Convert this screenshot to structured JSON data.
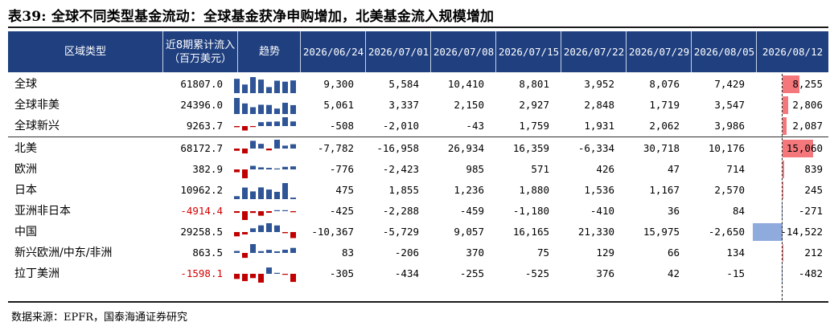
{
  "title": "表39: 全球不同类型基金流动：全球基金获净申购增加，北美基金流入规模增加",
  "header": {
    "region": "区域类型",
    "cum_line1": "近8期累计流入",
    "cum_line2": "（百万美元）",
    "trend": "趋势",
    "dates": [
      "2026/06/24",
      "2026/07/01",
      "2026/07/08",
      "2026/07/15",
      "2026/07/22",
      "2026/07/29",
      "2026/08/05",
      "2026/08/12"
    ]
  },
  "rows": [
    {
      "name": "全球",
      "cum": "61807.0",
      "cum_negative": false,
      "values": [
        9300,
        5584,
        10410,
        8801,
        3952,
        8076,
        7429,
        8255
      ],
      "labels": [
        "9,300",
        "5,584",
        "10,410",
        "8,801",
        "3,952",
        "8,076",
        "7,429",
        "8,255"
      ]
    },
    {
      "name": "全球非美",
      "cum": "24396.0",
      "cum_negative": false,
      "values": [
        5061,
        3337,
        2150,
        2927,
        2848,
        1719,
        3547,
        2806
      ],
      "labels": [
        "5,061",
        "3,337",
        "2,150",
        "2,927",
        "2,848",
        "1,719",
        "3,547",
        "2,806"
      ]
    },
    {
      "name": "全球新兴",
      "cum": "9263.7",
      "cum_negative": false,
      "values": [
        -508,
        -2010,
        -43,
        1759,
        1931,
        2062,
        3986,
        2087
      ],
      "labels": [
        "-508",
        "-2,010",
        "-43",
        "1,759",
        "1,931",
        "2,062",
        "3,986",
        "2,087"
      ]
    },
    {
      "name": "北美",
      "cum": "68172.7",
      "cum_negative": false,
      "values": [
        -7782,
        -16958,
        26934,
        16359,
        -6334,
        30718,
        10176,
        15060
      ],
      "labels": [
        "-7,782",
        "-16,958",
        "26,934",
        "16,359",
        "-6,334",
        "30,718",
        "10,176",
        "15,060"
      ]
    },
    {
      "name": "欧洲",
      "cum": "382.9",
      "cum_negative": false,
      "values": [
        -776,
        -2423,
        985,
        571,
        426,
        47,
        714,
        839
      ],
      "labels": [
        "-776",
        "-2,423",
        "985",
        "571",
        "426",
        "47",
        "714",
        "839"
      ]
    },
    {
      "name": "日本",
      "cum": "10962.2",
      "cum_negative": false,
      "values": [
        475,
        1855,
        1236,
        1880,
        1536,
        1167,
        2570,
        245
      ],
      "labels": [
        "475",
        "1,855",
        "1,236",
        "1,880",
        "1,536",
        "1,167",
        "2,570",
        "245"
      ]
    },
    {
      "name": "亚洲非日本",
      "cum": "-4914.4",
      "cum_negative": true,
      "values": [
        -425,
        -2288,
        -459,
        -1180,
        -410,
        36,
        84,
        -271
      ],
      "labels": [
        "-425",
        "-2,288",
        "-459",
        "-1,180",
        "-410",
        "36",
        "84",
        "-271"
      ]
    },
    {
      "name": "中国",
      "cum": "29258.5",
      "cum_negative": false,
      "values": [
        -10367,
        -5729,
        9057,
        16165,
        21330,
        15975,
        -2650,
        -14522
      ],
      "labels": [
        "-10,367",
        "-5,729",
        "9,057",
        "16,165",
        "21,330",
        "15,975",
        "-2,650",
        "-14,522"
      ]
    },
    {
      "name": "新兴欧洲/中东/非洲",
      "cum": "863.5",
      "cum_negative": false,
      "values": [
        83,
        -206,
        370,
        75,
        129,
        66,
        134,
        212
      ],
      "labels": [
        "83",
        "-206",
        "370",
        "75",
        "129",
        "66",
        "134",
        "212"
      ]
    },
    {
      "name": "拉丁美洲",
      "cum": "-1598.1",
      "cum_negative": true,
      "values": [
        -305,
        -434,
        -255,
        -525,
        376,
        42,
        -15,
        -482
      ],
      "labels": [
        "-305",
        "-434",
        "-255",
        "-525",
        "376",
        "42",
        "-15",
        "-482"
      ]
    }
  ],
  "colors": {
    "header_bg": "#1f3f7f",
    "spark_pos": "#2f5597",
    "spark_neg": "#c00000",
    "last_pos": "#f4777c",
    "last_neg": "#8faadc",
    "neg_text": "#d40000"
  },
  "source": "数据来源：EPFR，国泰海通证券研究"
}
